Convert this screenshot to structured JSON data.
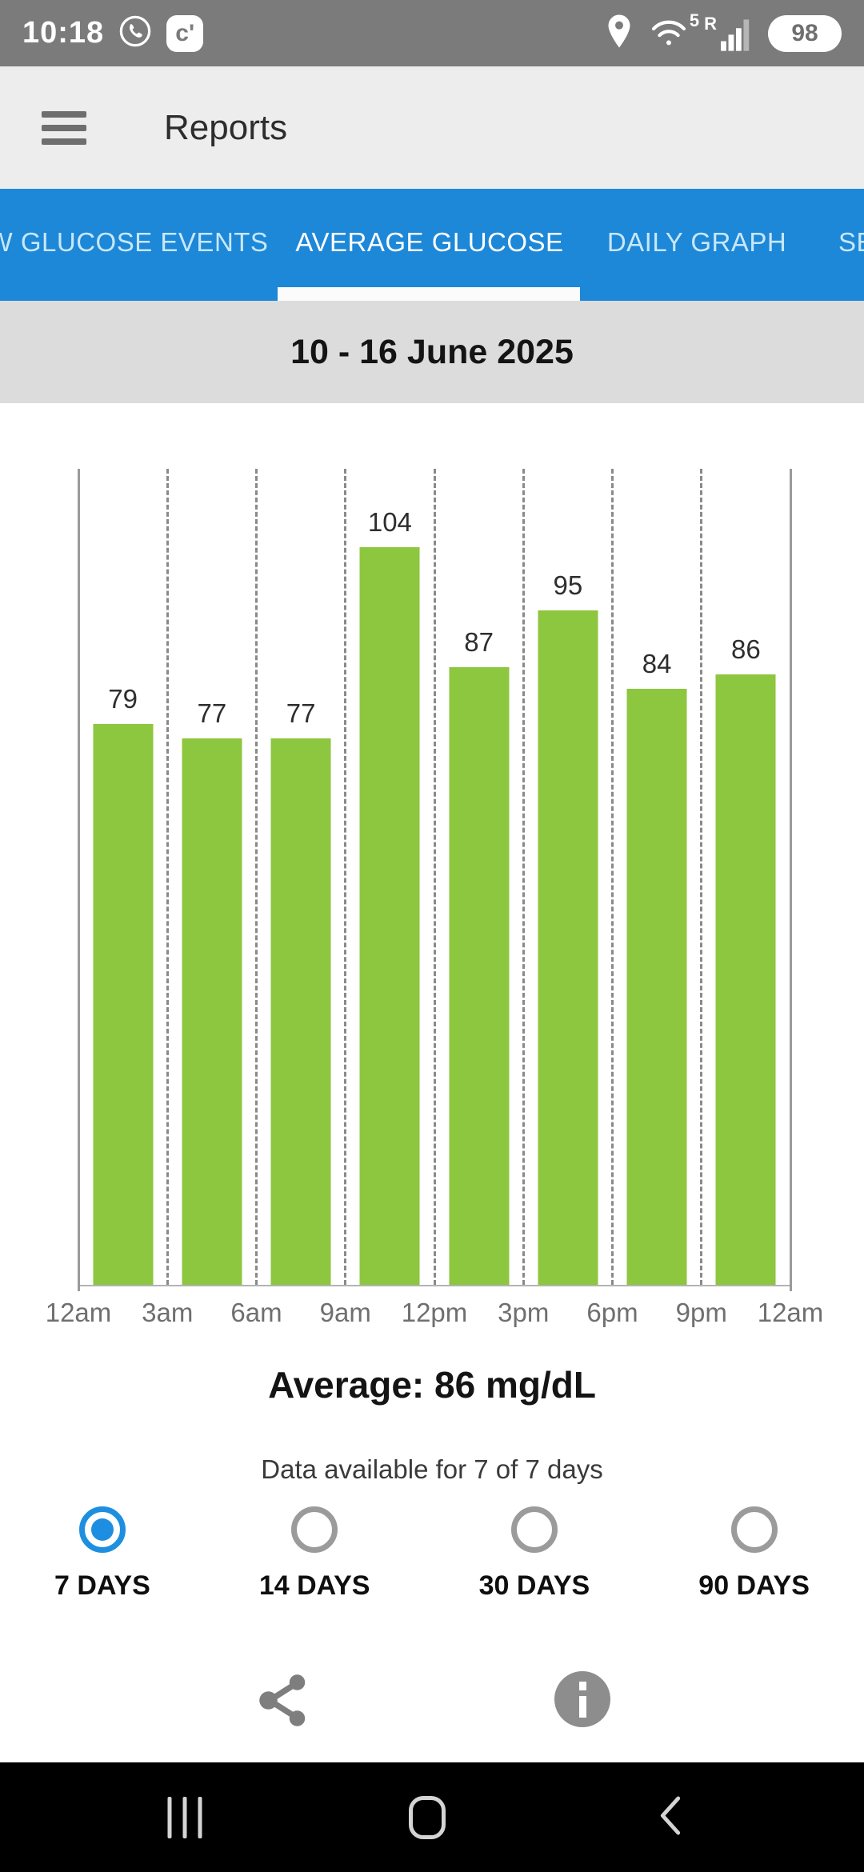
{
  "status_bar": {
    "time": "10:18",
    "app_badge_glyph": "c'",
    "wifi_badge": "5",
    "network_badge": "R",
    "battery_percent": "98",
    "icons": [
      "whatsapp-icon",
      "c-app-icon",
      "location-icon",
      "wifi-icon",
      "signal-bars-icon",
      "battery-icon"
    ]
  },
  "app_bar": {
    "title": "Reports",
    "menu_icon": "hamburger-menu-icon"
  },
  "tabs": {
    "items": [
      {
        "label": "W GLUCOSE EVENTS",
        "selected": false
      },
      {
        "label": "AVERAGE GLUCOSE",
        "selected": true
      },
      {
        "label": "DAILY GRAPH",
        "selected": false
      },
      {
        "label": "SE",
        "selected": false
      }
    ]
  },
  "date_header": {
    "text": "10 - 16 June 2025"
  },
  "chart_data": {
    "type": "bar",
    "title": "Average glucose by 3-hour period, 10 - 16 June 2025",
    "categories": [
      "12am-3am",
      "3am-6am",
      "6am-9am",
      "9am-12pm",
      "12pm-3pm",
      "3pm-6pm",
      "6pm-9pm",
      "9pm-12am"
    ],
    "values": [
      79,
      77,
      77,
      104,
      87,
      95,
      84,
      86
    ],
    "x_tick_labels": [
      "12am",
      "3am",
      "6am",
      "9am",
      "12pm",
      "3pm",
      "6pm",
      "9pm",
      "12am"
    ],
    "xlabel": "",
    "ylabel": "",
    "units": "mg/dL",
    "ylim": [
      0,
      115
    ],
    "grid": "vertical-dashed",
    "bar_color": "#8dc63f",
    "legend": "none"
  },
  "summary": {
    "average_text": "Average: 86 mg/dL",
    "availability_text": "Data available for 7 of 7 days"
  },
  "range_selector": {
    "options": [
      {
        "label": "7 DAYS",
        "selected": true
      },
      {
        "label": "14 DAYS",
        "selected": false
      },
      {
        "label": "30 DAYS",
        "selected": false
      },
      {
        "label": "90 DAYS",
        "selected": false
      }
    ]
  },
  "footer": {
    "icons": [
      "share-icon",
      "info-icon"
    ]
  },
  "nav_bar": {
    "icons": [
      "recents-icon",
      "home-icon",
      "back-icon"
    ]
  },
  "colors": {
    "accent_blue": "#1d87d8",
    "radio_blue": "#1e8fe0",
    "bar_green": "#8dc63f",
    "status_gray": "#7b7b7b",
    "date_band_gray": "#dcdcdc",
    "nav_black": "#000000"
  }
}
